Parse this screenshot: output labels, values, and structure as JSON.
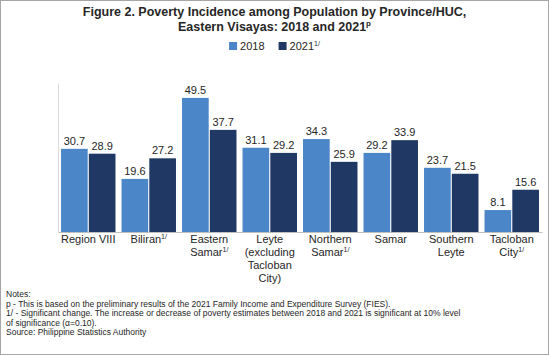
{
  "chart_data": {
    "type": "bar",
    "title": "Figure 2. Poverty Incidence among Population by Province/HUC, Eastern Visayas: 2018 and 2021",
    "title_note": "p",
    "categories": [
      "Region VIII",
      "Biliran",
      "Eastern Samar",
      "Leyte (excluding Tacloban City)",
      "Northern Samar",
      "Samar",
      "Southern Leyte",
      "Tacloban City"
    ],
    "category_notes": [
      null,
      "1/",
      "1/",
      null,
      "1/",
      null,
      null,
      "1/"
    ],
    "series": [
      {
        "name": "2018",
        "color": "#4a86c8",
        "values": [
          30.7,
          19.6,
          49.5,
          31.1,
          34.3,
          29.2,
          23.7,
          8.1
        ]
      },
      {
        "name": "2021",
        "name_note": "1/",
        "color": "#1f3864",
        "values": [
          28.9,
          27.2,
          37.7,
          29.2,
          25.9,
          33.9,
          21.5,
          15.6
        ]
      }
    ],
    "ylim": [
      0,
      55
    ],
    "data_labels": true,
    "tick_labels": "x",
    "legend": "top",
    "notes": [
      "Notes:",
      "p - This is based on the preliminary results of the 2021 Family Income and Expenditure Survey (FIES).",
      "1/ - Significant change. The increase or decrease of poverty estimates between 2018 and 2021 is significant at 10% level",
      "of significance (α=0.10)."
    ],
    "source": "Source: Philippine Statistics Authority"
  }
}
